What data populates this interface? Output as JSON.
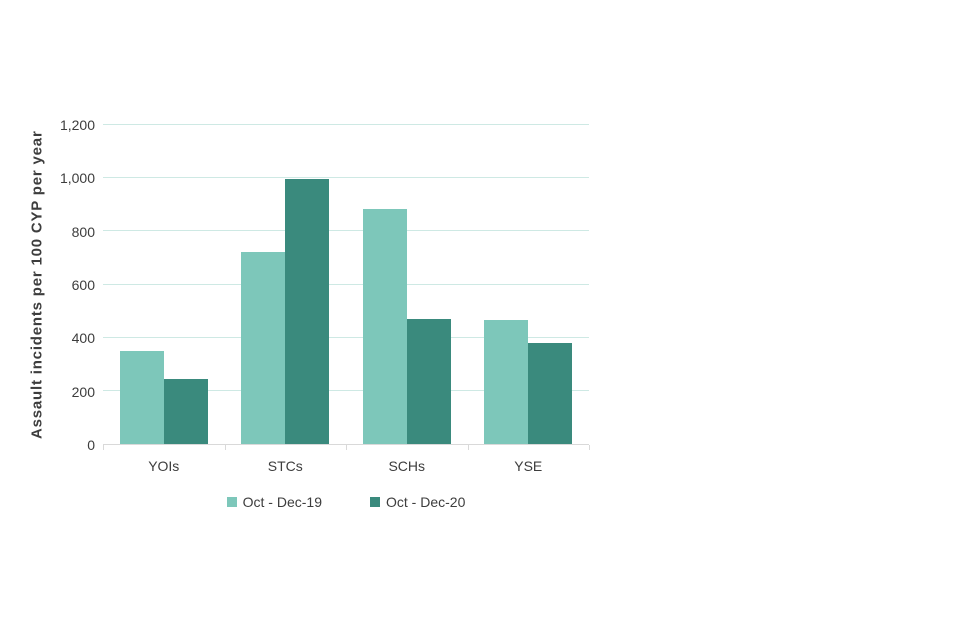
{
  "chart_data": {
    "type": "bar",
    "title": "",
    "xlabel": "",
    "ylabel": "Assault incidents per 100 CYP per year",
    "categories": [
      "YOIs",
      "STCs",
      "SCHs",
      "YSE"
    ],
    "series": [
      {
        "name": "Oct - Dec-19",
        "color": "#7dc7ba",
        "values": [
          350,
          720,
          880,
          465
        ]
      },
      {
        "name": "Oct - Dec-20",
        "color": "#3a8a7d",
        "values": [
          245,
          995,
          470,
          380
        ]
      }
    ],
    "ylim": [
      0,
      1200
    ],
    "ytick_step": 200,
    "ytick_labels": [
      "0",
      "200",
      "400",
      "600",
      "800",
      "1,000",
      "1,200"
    ],
    "grid": true,
    "legend_position": "bottom-center"
  },
  "colors": {
    "series_light": "#7dc7ba",
    "series_dark": "#3a8a7d",
    "gridline": "#cee9e4",
    "axis_line": "#d9d9d9",
    "text": "#3d3d3d",
    "background": "#ffffff"
  }
}
